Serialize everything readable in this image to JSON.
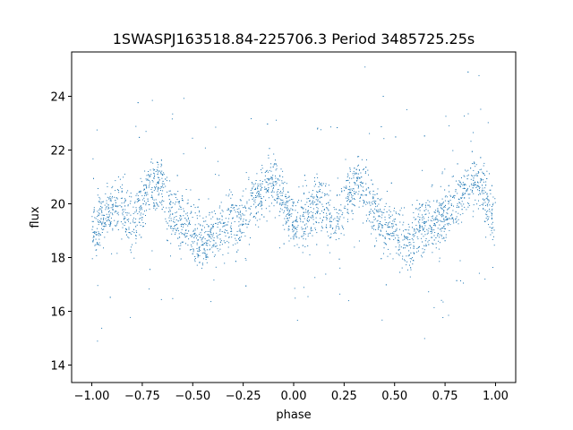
{
  "chart_data": {
    "type": "scatter",
    "title": "1SWASPJ163518.84-225706.3 Period 3485725.25s",
    "xlabel": "phase",
    "ylabel": "flux",
    "xlim": [
      -1.1,
      1.1
    ],
    "ylim": [
      13.35,
      25.65
    ],
    "xticks": [
      -1.0,
      -0.75,
      -0.5,
      -0.25,
      0.0,
      0.25,
      0.5,
      0.75,
      1.0
    ],
    "xtick_labels": [
      "−1.00",
      "−0.75",
      "−0.50",
      "−0.25",
      "0.00",
      "0.25",
      "0.50",
      "0.75",
      "1.00"
    ],
    "yticks": [
      14,
      16,
      18,
      20,
      22,
      24
    ],
    "ytick_labels": [
      "14",
      "16",
      "18",
      "20",
      "22",
      "24"
    ],
    "grid": false,
    "marker_color": "#1f77b4",
    "series": [
      {
        "phase": [
          -1.0,
          -0.975,
          -0.95,
          -0.925,
          -0.9,
          -0.875,
          -0.85,
          -0.825,
          -0.8,
          -0.775,
          -0.75,
          -0.725,
          -0.7,
          -0.675,
          -0.65,
          -0.625,
          -0.6,
          -0.575,
          -0.55,
          -0.525,
          -0.5,
          -0.475,
          -0.45,
          -0.425,
          -0.4,
          -0.375,
          -0.35,
          -0.325,
          -0.3,
          -0.275,
          -0.25,
          -0.225,
          -0.2,
          -0.175,
          -0.15,
          -0.125,
          -0.1,
          -0.075,
          -0.05,
          -0.025,
          0.0,
          0.025,
          0.05,
          0.075,
          0.1,
          0.125,
          0.15,
          0.175,
          0.2,
          0.225,
          0.25,
          0.275,
          0.3,
          0.325,
          0.35,
          0.375,
          0.4,
          0.425,
          0.45,
          0.475,
          0.5,
          0.525,
          0.55,
          0.575,
          0.6,
          0.625,
          0.65,
          0.675,
          0.7,
          0.725,
          0.75,
          0.775,
          0.8,
          0.825,
          0.85,
          0.875,
          0.9,
          0.925,
          0.95,
          0.975,
          1.0
        ],
        "flux": [
          19.0,
          19.2,
          19.4,
          19.6,
          19.8,
          20.1,
          20.0,
          19.6,
          19.2,
          19.5,
          20.0,
          20.4,
          20.6,
          20.9,
          20.5,
          20.0,
          19.6,
          19.4,
          19.2,
          19.3,
          19.0,
          18.7,
          18.6,
          18.6,
          18.8,
          19.0,
          19.1,
          19.2,
          19.3,
          19.4,
          19.6,
          19.8,
          20.1,
          20.3,
          20.5,
          20.8,
          20.9,
          20.6,
          20.2,
          19.6,
          19.2,
          19.3,
          19.4,
          19.6,
          19.8,
          20.1,
          20.0,
          19.6,
          19.2,
          19.5,
          20.0,
          20.4,
          20.6,
          20.9,
          20.5,
          20.0,
          19.6,
          19.4,
          19.2,
          19.3,
          19.0,
          18.7,
          18.6,
          18.6,
          18.8,
          19.0,
          19.1,
          19.2,
          19.3,
          19.4,
          19.6,
          19.8,
          20.1,
          20.3,
          20.5,
          20.8,
          20.9,
          20.6,
          20.2,
          19.6,
          19.2
        ]
      }
    ]
  }
}
